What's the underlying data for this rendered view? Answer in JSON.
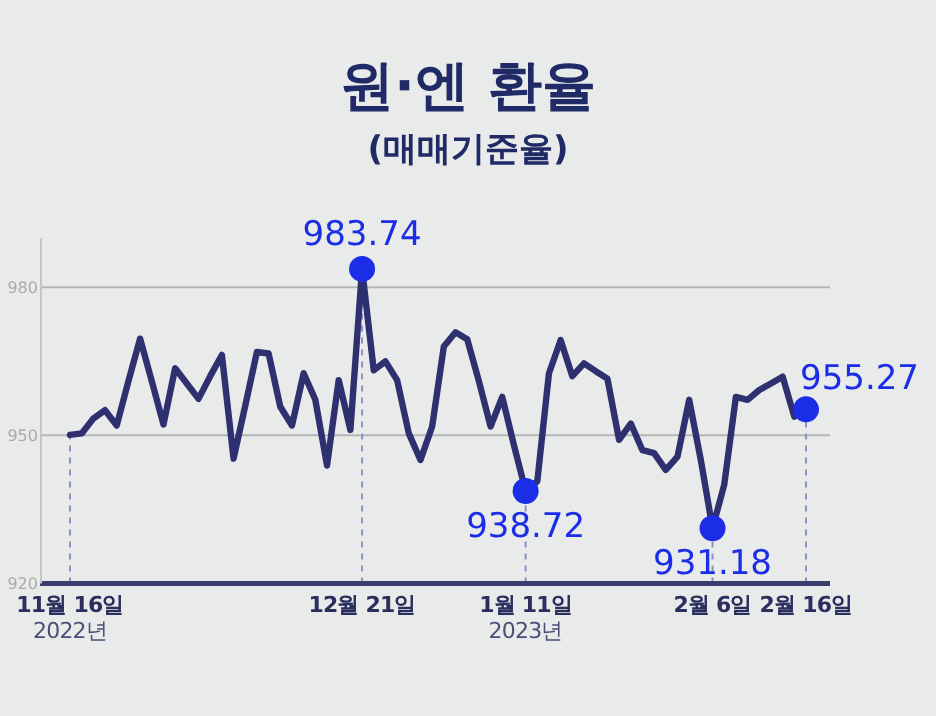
{
  "chart_data": {
    "type": "line",
    "title": "원·엔 환율",
    "subtitle": "(매매기준율)",
    "categories": [
      "11월 16일\n2022년",
      null,
      null,
      null,
      null,
      null,
      null,
      null,
      null,
      null,
      null,
      null,
      null,
      null,
      null,
      null,
      null,
      null,
      null,
      null,
      null,
      null,
      null,
      null,
      null,
      "12월 21일",
      null,
      null,
      null,
      null,
      null,
      null,
      null,
      null,
      null,
      null,
      null,
      null,
      null,
      "1월 11일\n2023년",
      null,
      null,
      null,
      null,
      null,
      null,
      null,
      null,
      null,
      null,
      null,
      null,
      null,
      null,
      null,
      "2월 6일",
      null,
      null,
      null,
      null,
      null,
      null,
      null,
      "2월 16일"
    ],
    "series": [
      {
        "color": "#2e3070",
        "values": [
          950.1,
          950.4,
          953.4,
          955.1,
          952.0,
          961,
          969.6,
          961,
          952.2,
          963.6,
          960.5,
          957.4,
          962,
          966.3,
          945.3,
          956,
          966.9,
          966.6,
          955.8,
          952.0,
          962.6,
          957.2,
          943.9,
          961.2,
          951.1,
          983.74,
          963.2,
          965.0,
          961.2,
          950.4,
          945.0,
          951.8,
          968.0,
          970.9,
          969.5,
          961,
          951.8,
          957.8,
          948,
          938.72,
          940.7,
          962.6,
          969.3,
          962,
          964.6,
          963,
          961.5,
          949.1,
          952.4,
          947.0,
          946.4,
          943,
          945.7,
          957.2,
          945.0,
          931.18,
          940,
          957.8,
          957.2,
          959.2,
          960.5,
          961.9,
          953.8,
          955.27
        ],
        "value_labels": [
          null,
          null,
          null,
          null,
          null,
          null,
          null,
          null,
          null,
          null,
          null,
          null,
          null,
          null,
          null,
          null,
          null,
          null,
          null,
          null,
          null,
          null,
          null,
          null,
          null,
          "983.74",
          null,
          null,
          null,
          null,
          null,
          null,
          null,
          null,
          null,
          null,
          null,
          null,
          null,
          "938.72",
          null,
          null,
          null,
          null,
          null,
          null,
          null,
          null,
          null,
          null,
          null,
          null,
          null,
          null,
          null,
          "931.18",
          null,
          null,
          null,
          null,
          null,
          null,
          null,
          "955.27"
        ]
      }
    ],
    "ylim": [
      920,
      990
    ],
    "yticks": [
      920,
      950,
      980
    ],
    "grid": "y",
    "ref_lines": [
      {
        "axis": "x",
        "value": "11월 16일\n2022년",
        "color": "#8f8fc4",
        "line_style": "dashed"
      }
    ],
    "line_style": "solid",
    "marker": "none"
  }
}
